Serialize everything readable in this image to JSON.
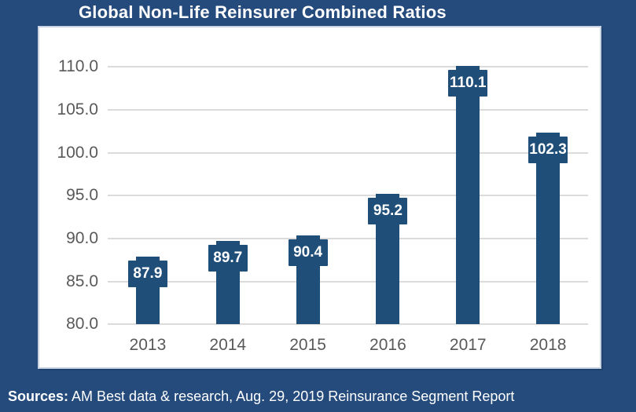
{
  "title": "Global Non-Life Reinsurer Combined Ratios",
  "source": {
    "label": "Sources:",
    "text": " AM Best data & research, Aug. 29, 2019 Reinsurance Segment Report"
  },
  "colors": {
    "background": "#254B7D",
    "bar": "#1F4E79",
    "plot_background": "#FFFFFF",
    "plot_border": "#C9D3E2",
    "gridline": "#DBDBDB",
    "axis_text": "#595959",
    "title_text": "#FFFFFF",
    "value_label_text": "#FFFFFF",
    "source_text": "#FFFFFF"
  },
  "chart_data": {
    "type": "bar",
    "title": "Global Non-Life Reinsurer Combined Ratios",
    "categories": [
      "2013",
      "2014",
      "2015",
      "2016",
      "2017",
      "2018"
    ],
    "values": [
      87.9,
      89.7,
      90.4,
      95.2,
      110.1,
      102.3
    ],
    "xlabel": "",
    "ylabel": "",
    "ylim": [
      80.0,
      110.0
    ],
    "ytick_step": 5.0,
    "ytick_labels": [
      "80.0",
      "85.0",
      "90.0",
      "95.0",
      "100.0",
      "105.0",
      "110.0"
    ],
    "grid": true,
    "legend": "none",
    "value_labels": [
      "87.9",
      "89.7",
      "90.4",
      "95.2",
      "110.1",
      "102.3"
    ],
    "value_label_style": "boxed-at-bar-top"
  }
}
